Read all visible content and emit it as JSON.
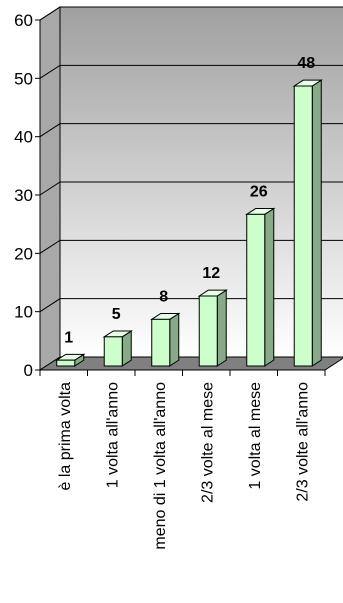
{
  "chart_data": {
    "type": "bar",
    "categories": [
      "è la prima volta",
      "1 volta all'anno",
      "meno di 1 volta all'anno",
      "2/3 volte al mese",
      "1 volta al mese",
      "2/3 volte all'anno"
    ],
    "values": [
      1,
      5,
      8,
      12,
      26,
      48
    ],
    "data_labels": [
      "1",
      "5",
      "8",
      "12",
      "26",
      "48"
    ],
    "yticks": [
      "0",
      "10",
      "20",
      "30",
      "40",
      "50",
      "60"
    ],
    "ylim": [
      0,
      60
    ],
    "grid": true,
    "three_d": true,
    "colors": {
      "bar_front": "#ccffcc",
      "bar_top": "#e6ffe6",
      "bar_side": "#88aa88",
      "back_wall": "#c0c0c0",
      "floor": "#808080",
      "gridline": "#000000"
    }
  }
}
